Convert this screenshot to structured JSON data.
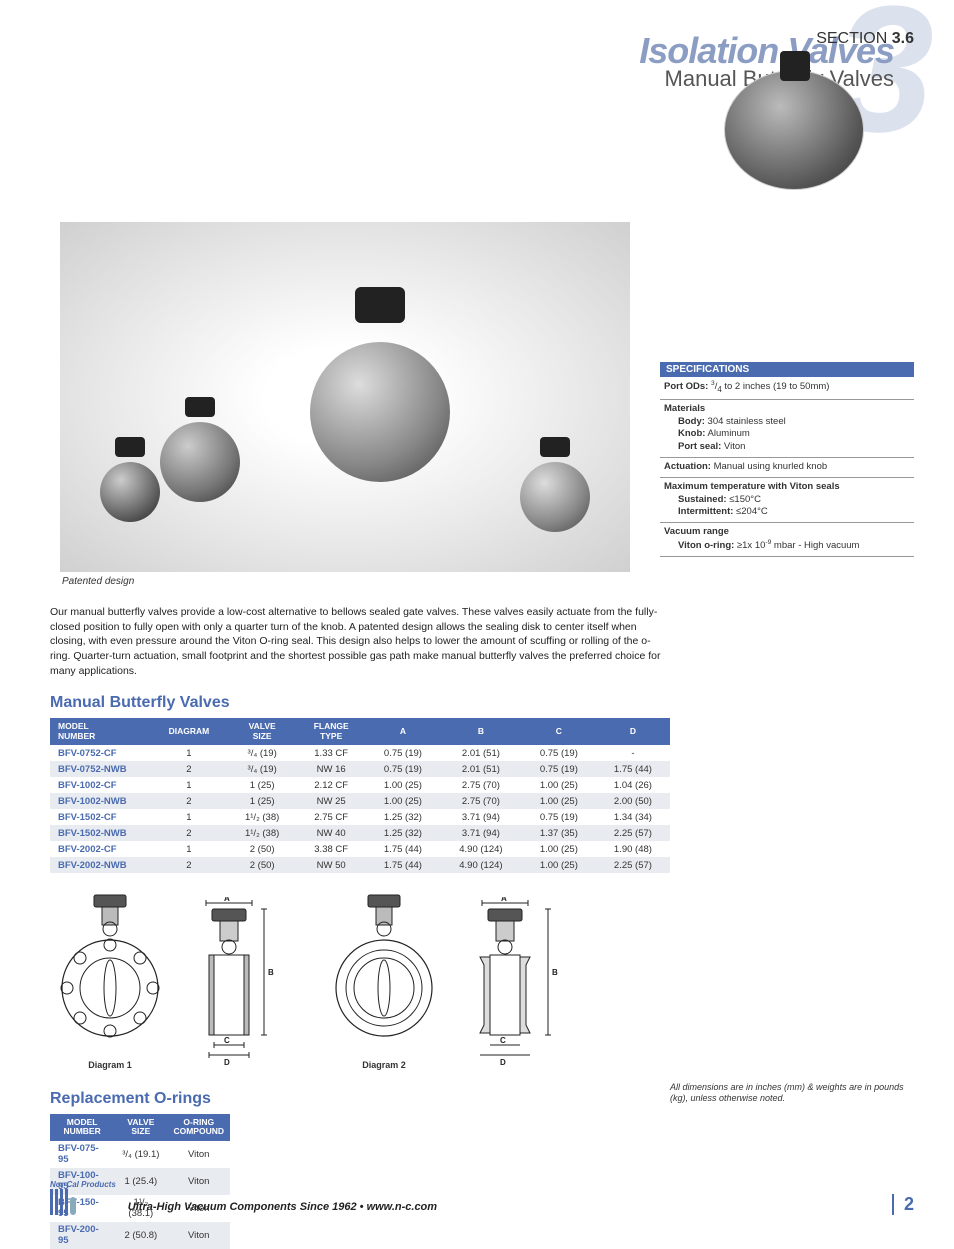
{
  "header": {
    "bigNumber": "3",
    "sectionLabel_pre": "SECTION ",
    "sectionLabel_bold": "3.6",
    "title": "Isolation Valves",
    "subtitle": "Manual Butterfly Valves"
  },
  "photo_caption": "Patented design",
  "specs": {
    "heading": "SPECIFICATIONS",
    "rows": [
      {
        "html": "<b>Port ODs:</b> <sup>3</sup>/<sub>4</sub> to 2 inches (19 to 50mm)"
      },
      {
        "html": "<b>Materials</b><span class='spec-indent'><b>Body:</b> 304 stainless steel</span><span class='spec-indent'><b>Knob:</b> Aluminum</span><span class='spec-indent'><b>Port seal:</b> Viton</span>"
      },
      {
        "html": "<b>Actuation:</b> Manual using knurled knob"
      },
      {
        "html": "<b>Maximum temperature with Viton seals</b><span class='spec-indent'><b>Sustained:</b> ≤150°C</span><span class='spec-indent'><b>Intermittent:</b> ≤204°C</span>"
      },
      {
        "html": "<b>Vacuum range</b><span class='spec-indent'><b>Viton o-ring:</b> ≥1x 10<sup>-9</sup> mbar - High vacuum</span>"
      }
    ]
  },
  "body_text": "Our manual butterfly valves provide a low-cost alternative to bellows sealed gate valves.  These valves easily actuate from the fully-closed position to fully open with only a quarter turn of the knob.  A patented design allows the sealing disk to center itself when closing, with even pressure around the Viton O-ring seal.  This design also helps to lower the amount of scuffing or rolling of the o-ring.  Quarter-turn actuation, small footprint and the shortest possible gas path make manual butterfly valves the preferred choice for many applications.",
  "table1": {
    "title": "Manual Butterfly Valves",
    "columns": [
      "MODEL\nNUMBER",
      "DIAGRAM",
      "VALVE\nSIZE",
      "FLANGE\nTYPE",
      "A",
      "B",
      "C",
      "D"
    ],
    "rows": [
      [
        "BFV-0752-CF",
        "1",
        "³/₄ (19)",
        "1.33 CF",
        "0.75 (19)",
        "2.01 (51)",
        "0.75 (19)",
        "-"
      ],
      [
        "BFV-0752-NWB",
        "2",
        "³/₄ (19)",
        "NW 16",
        "0.75 (19)",
        "2.01 (51)",
        "0.75 (19)",
        "1.75 (44)"
      ],
      [
        "BFV-1002-CF",
        "1",
        "1 (25)",
        "2.12 CF",
        "1.00 (25)",
        "2.75 (70)",
        "1.00 (25)",
        "1.04 (26)"
      ],
      [
        "BFV-1002-NWB",
        "2",
        "1 (25)",
        "NW 25",
        "1.00 (25)",
        "2.75 (70)",
        "1.00 (25)",
        "2.00 (50)"
      ],
      [
        "BFV-1502-CF",
        "1",
        "1¹/₂ (38)",
        "2.75 CF",
        "1.25 (32)",
        "3.71 (94)",
        "0.75 (19)",
        "1.34 (34)"
      ],
      [
        "BFV-1502-NWB",
        "2",
        "1¹/₂ (38)",
        "NW 40",
        "1.25 (32)",
        "3.71 (94)",
        "1.37 (35)",
        "2.25 (57)"
      ],
      [
        "BFV-2002-CF",
        "1",
        "2 (50)",
        "3.38 CF",
        "1.75 (44)",
        "4.90 (124)",
        "1.00 (25)",
        "1.90 (48)"
      ],
      [
        "BFV-2002-NWB",
        "2",
        "2 (50)",
        "NW 50",
        "1.75 (44)",
        "4.90 (124)",
        "1.00 (25)",
        "2.25 (57)"
      ]
    ]
  },
  "diagrams": {
    "label_A": "A",
    "label_B": "B",
    "label_C": "C",
    "label_D": "D",
    "caption1": "Diagram 1",
    "caption2": "Diagram 2"
  },
  "table2": {
    "title": "Replacement O-rings",
    "columns": [
      "MODEL\nNUMBER",
      "VALVE\nSIZE",
      "O-RING\nCOMPOUND"
    ],
    "rows": [
      [
        "BFV-075-95",
        "³/₄ (19.1)",
        "Viton"
      ],
      [
        "BFV-100-95",
        "1 (25.4)",
        "Viton"
      ],
      [
        "BFV-150-95",
        "1¹/₂ (38.1)",
        "Viton"
      ],
      [
        "BFV-200-95",
        "2 (50.8)",
        "Viton"
      ]
    ]
  },
  "footer_note": "All dimensions are in inches (mm) & weights are in pounds (kg), unless otherwise noted.",
  "footer": {
    "brand": "Nor-Cal Products",
    "tagline": "Ultra-High Vacuum Components Since 1962 • www.n-c.com",
    "page": "2"
  },
  "style": {
    "accent": "#4a6bb0",
    "shade": "#b8c4dd",
    "alt_row": "#e8ebf0"
  }
}
